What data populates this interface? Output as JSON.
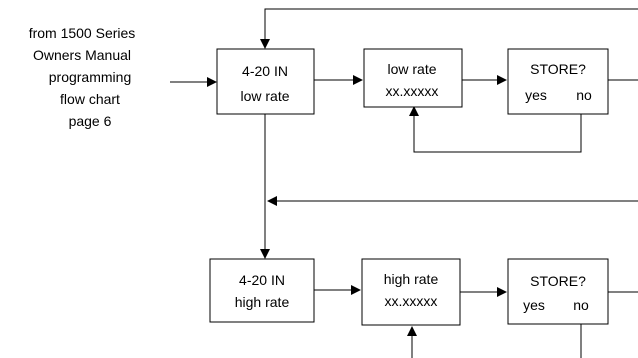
{
  "intro": {
    "lines": [
      "from 1500 Series",
      "Owners Manual",
      "programming",
      "flow chart",
      "page 6"
    ]
  },
  "boxes": {
    "low_in": {
      "line1": "4-20 IN",
      "line2": "low rate"
    },
    "low_rate": {
      "line1": "low rate",
      "line2": "xx.xxxxx"
    },
    "low_store": {
      "line1": "STORE?",
      "yes": "yes",
      "no": "no"
    },
    "high_in": {
      "line1": "4-20 IN",
      "line2": "high rate"
    },
    "high_rate": {
      "line1": "high rate",
      "line2": "xx.xxxxx"
    },
    "high_store": {
      "line1": "STORE?",
      "yes": "yes",
      "no": "no"
    }
  }
}
